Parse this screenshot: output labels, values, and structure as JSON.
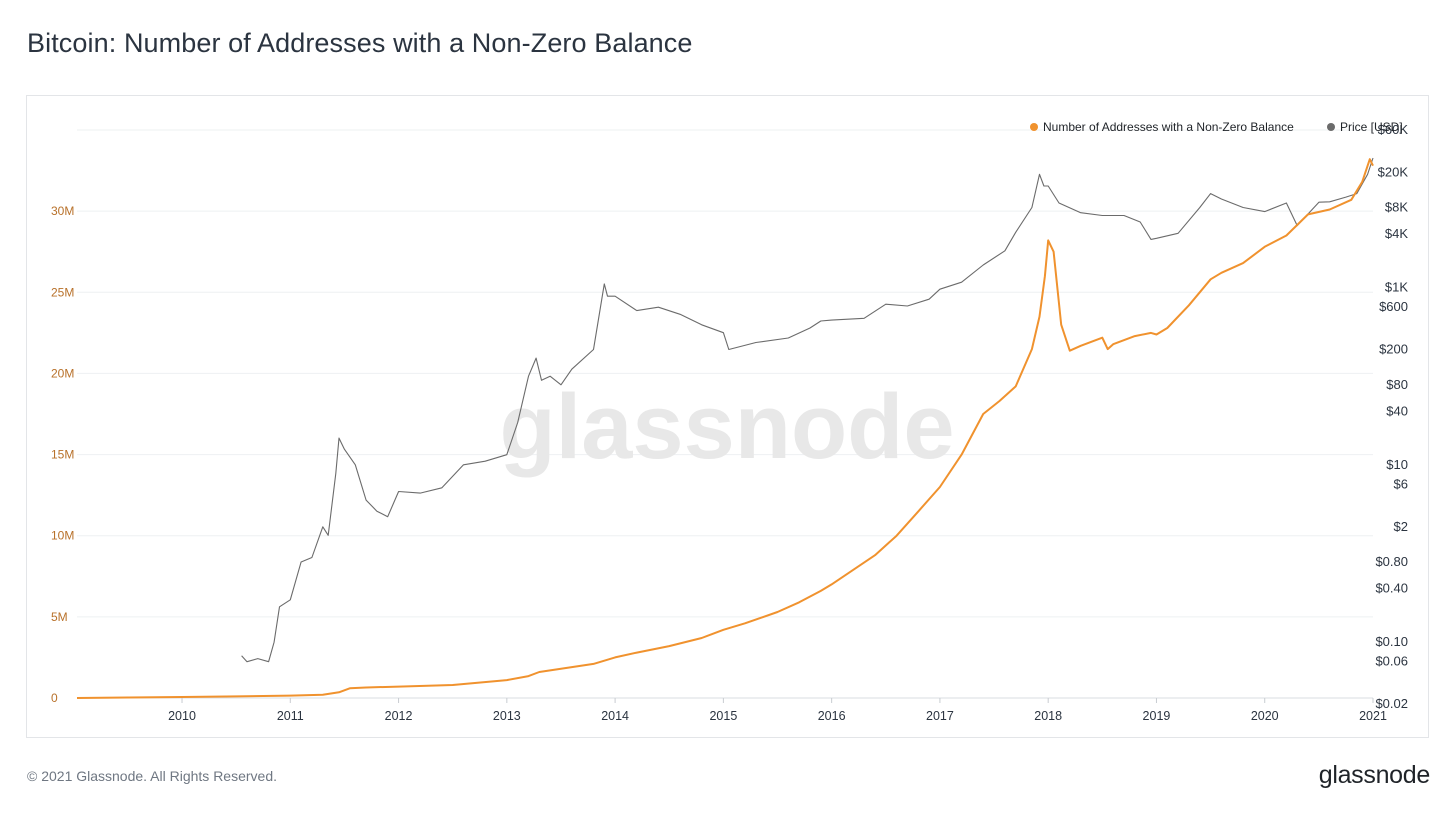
{
  "page": {
    "title": "Bitcoin: Number of Addresses with a Non-Zero Balance",
    "copyright": "© 2021 Glassnode. All Rights Reserved.",
    "brand": "glassnode",
    "watermark": "glassnode"
  },
  "chart_data": {
    "type": "line",
    "grid": true,
    "legend_placement": "top-right",
    "xlabel": "",
    "x_ticks": [
      "2010",
      "2011",
      "2012",
      "2013",
      "2014",
      "2015",
      "2016",
      "2017",
      "2018",
      "2019",
      "2020",
      "2021"
    ],
    "x_range": [
      2009.03,
      2021.0
    ],
    "y_left": {
      "ticks": [
        0,
        5000000,
        10000000,
        15000000,
        20000000,
        25000000,
        30000000
      ],
      "tick_labels": [
        "0",
        "5M",
        "10M",
        "15M",
        "20M",
        "25M",
        "30M"
      ],
      "range": [
        0,
        35000000
      ],
      "color": "#b8712a"
    },
    "y_right": {
      "scale": "log",
      "ticks": [
        60000,
        20000,
        8000,
        4000,
        1000,
        600,
        200,
        80,
        40,
        10,
        6,
        2,
        0.8,
        0.4,
        0.1,
        0.06,
        0.02
      ],
      "tick_labels": [
        "$60K",
        "$20K",
        "$8K",
        "$4K",
        "$1K",
        "$600",
        "$200",
        "$80",
        "$40",
        "$10",
        "$6",
        "$2",
        "$0.80",
        "$0.40",
        "$0.10",
        "$0.06",
        "$0.02"
      ],
      "range": [
        0.02,
        60000
      ]
    },
    "series": [
      {
        "name": "Number of Addresses with a Non-Zero Balance",
        "axis": "left",
        "color": "#f0922e",
        "x": [
          2009.03,
          2009.5,
          2010.0,
          2010.5,
          2011.0,
          2011.3,
          2011.45,
          2011.55,
          2011.7,
          2012.0,
          2012.5,
          2013.0,
          2013.2,
          2013.3,
          2013.5,
          2013.8,
          2014.0,
          2014.2,
          2014.5,
          2014.8,
          2015.0,
          2015.2,
          2015.5,
          2015.7,
          2015.9,
          2016.0,
          2016.2,
          2016.4,
          2016.6,
          2016.8,
          2017.0,
          2017.2,
          2017.4,
          2017.55,
          2017.7,
          2017.85,
          2017.92,
          2017.97,
          2018.0,
          2018.05,
          2018.12,
          2018.2,
          2018.3,
          2018.5,
          2018.55,
          2018.6,
          2018.8,
          2018.95,
          2019.0,
          2019.1,
          2019.3,
          2019.5,
          2019.6,
          2019.8,
          2020.0,
          2020.2,
          2020.4,
          2020.6,
          2020.8,
          2020.9,
          2020.97,
          2021.0
        ],
        "values": [
          0,
          30000,
          60000,
          100000,
          150000,
          200000,
          350000,
          600000,
          650000,
          700000,
          800000,
          1100000,
          1350000,
          1600000,
          1800000,
          2100000,
          2500000,
          2800000,
          3200000,
          3700000,
          4200000,
          4600000,
          5300000,
          5900000,
          6600000,
          7000000,
          7900000,
          8800000,
          10000000,
          11500000,
          13000000,
          15000000,
          17500000,
          18300000,
          19200000,
          21500000,
          23500000,
          26000000,
          28200000,
          27500000,
          23000000,
          21400000,
          21700000,
          22200000,
          21500000,
          21800000,
          22300000,
          22500000,
          22400000,
          22800000,
          24200000,
          25800000,
          26200000,
          26800000,
          27800000,
          28500000,
          29800000,
          30100000,
          30700000,
          31800000,
          33200000,
          32800000
        ]
      },
      {
        "name": "Price [USD]",
        "axis": "right",
        "color": "#6b6b6b",
        "x": [
          2010.55,
          2010.6,
          2010.7,
          2010.8,
          2010.85,
          2010.9,
          2011.0,
          2011.1,
          2011.2,
          2011.3,
          2011.35,
          2011.42,
          2011.45,
          2011.5,
          2011.6,
          2011.7,
          2011.8,
          2011.9,
          2012.0,
          2012.2,
          2012.4,
          2012.6,
          2012.8,
          2013.0,
          2013.1,
          2013.2,
          2013.27,
          2013.32,
          2013.4,
          2013.5,
          2013.6,
          2013.8,
          2013.9,
          2013.93,
          2014.0,
          2014.2,
          2014.4,
          2014.6,
          2014.8,
          2015.0,
          2015.05,
          2015.3,
          2015.6,
          2015.8,
          2015.9,
          2016.0,
          2016.3,
          2016.5,
          2016.7,
          2016.9,
          2017.0,
          2017.2,
          2017.4,
          2017.6,
          2017.7,
          2017.85,
          2017.92,
          2017.96,
          2018.0,
          2018.1,
          2018.3,
          2018.5,
          2018.7,
          2018.85,
          2018.95,
          2019.0,
          2019.2,
          2019.4,
          2019.5,
          2019.6,
          2019.8,
          2020.0,
          2020.2,
          2020.3,
          2020.5,
          2020.6,
          2020.75,
          2020.85,
          2020.95,
          2021.0
        ],
        "values": [
          0.07,
          0.06,
          0.065,
          0.06,
          0.1,
          0.25,
          0.3,
          0.8,
          0.9,
          2,
          1.6,
          8,
          20,
          15,
          10,
          4,
          3,
          2.6,
          5,
          4.8,
          5.5,
          10,
          11,
          13,
          30,
          100,
          160,
          90,
          100,
          80,
          120,
          200,
          1100,
          800,
          800,
          550,
          600,
          500,
          380,
          310,
          200,
          240,
          270,
          350,
          420,
          430,
          450,
          650,
          620,
          740,
          960,
          1150,
          1800,
          2600,
          4200,
          8000,
          19000,
          14000,
          14000,
          9000,
          7000,
          6500,
          6500,
          5500,
          3500,
          3600,
          4100,
          8000,
          11500,
          10000,
          8000,
          7200,
          9000,
          5000,
          9200,
          9300,
          10500,
          11500,
          19000,
          29000
        ]
      }
    ]
  }
}
